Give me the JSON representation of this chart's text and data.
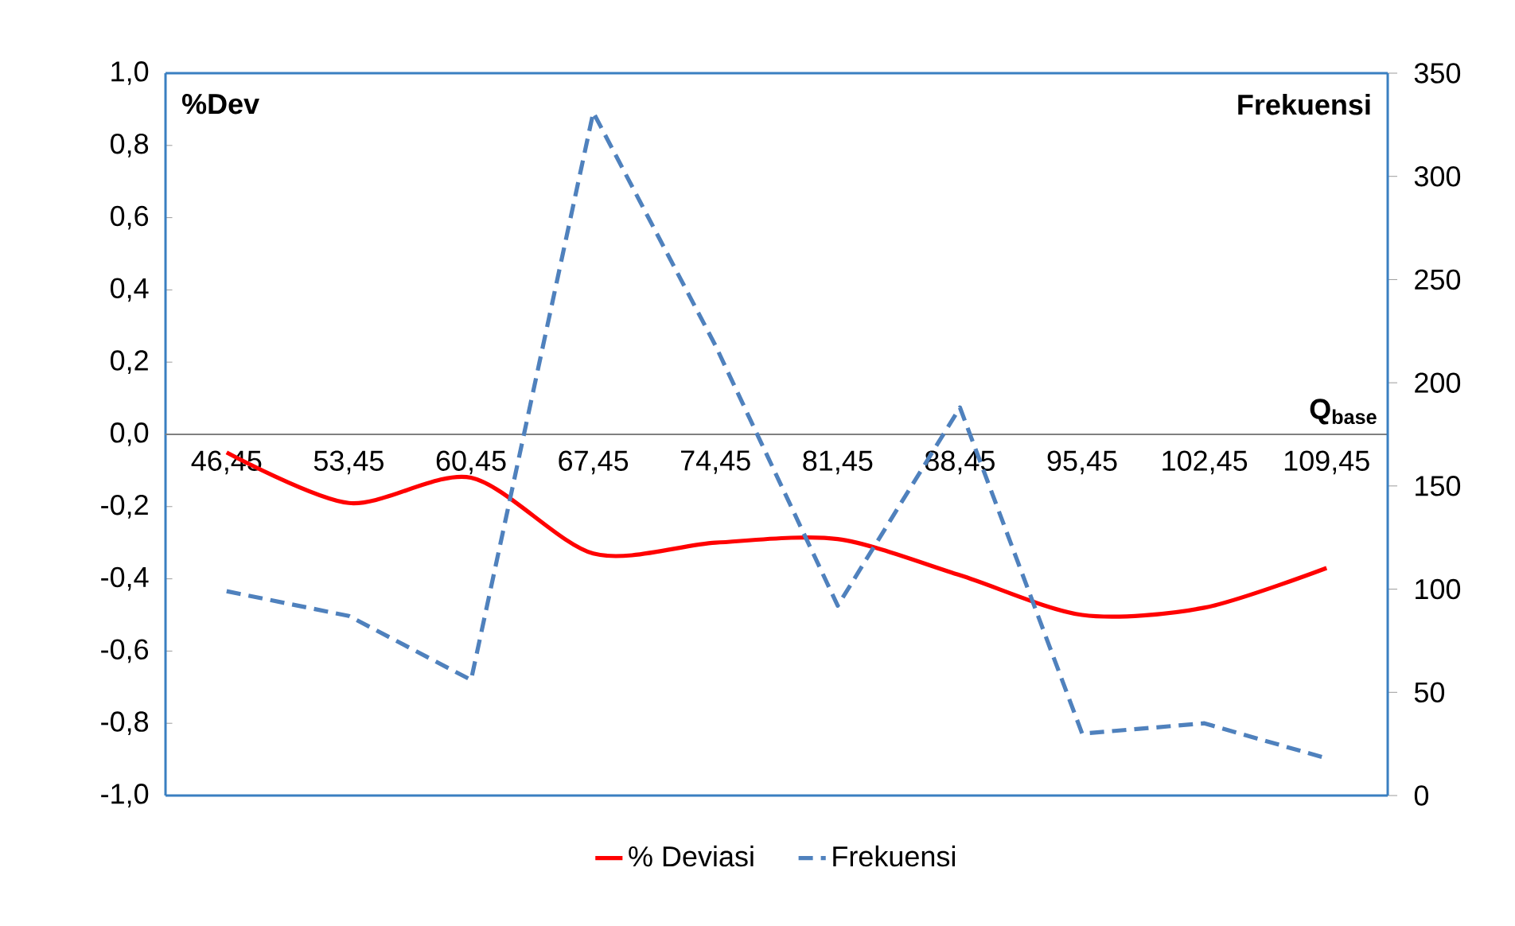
{
  "chart_data": {
    "type": "line",
    "categories": [
      "46,45",
      "53,45",
      "60,45",
      "67,45",
      "74,45",
      "81,45",
      "88,45",
      "95,45",
      "102,45",
      "109,45"
    ],
    "series": [
      {
        "name": "% Deviasi",
        "color": "#ff0000",
        "line_style": "solid",
        "values": [
          -0.05,
          -0.19,
          -0.12,
          -0.33,
          -0.3,
          -0.29,
          -0.39,
          -0.5,
          -0.48,
          -0.37
        ]
      },
      {
        "name": "Frekuensi",
        "color": "#4f81bd",
        "line_style": "dashed",
        "axis": "y2",
        "values": [
          99,
          87,
          56,
          331,
          218,
          92,
          188,
          30,
          35,
          18
        ]
      }
    ],
    "ylabel": "%Dev",
    "y2label": "Frekuensi",
    "xlabel": "Q$_{base}$",
    "ylim": [
      -1.0,
      1.0
    ],
    "yticks": [
      {
        "value": -1.0,
        "label": "-1,0"
      },
      {
        "value": -0.8,
        "label": "-0,8"
      },
      {
        "value": -0.6,
        "label": "-0,6"
      },
      {
        "value": -0.4,
        "label": "-0,4"
      },
      {
        "value": -0.2,
        "label": "-0,2"
      },
      {
        "value": 0.0,
        "label": "0,0"
      },
      {
        "value": 0.2,
        "label": "0,2"
      },
      {
        "value": 0.4,
        "label": "0,4"
      },
      {
        "value": 0.6,
        "label": "0,6"
      },
      {
        "value": 0.8,
        "label": "0,8"
      },
      {
        "value": 1.0,
        "label": "1,0"
      }
    ],
    "y2lim": [
      0,
      350
    ],
    "y2ticks": [
      0,
      50,
      100,
      150,
      200,
      250,
      300,
      350
    ],
    "legend": "bottom",
    "grid": false,
    "marker": "none"
  }
}
